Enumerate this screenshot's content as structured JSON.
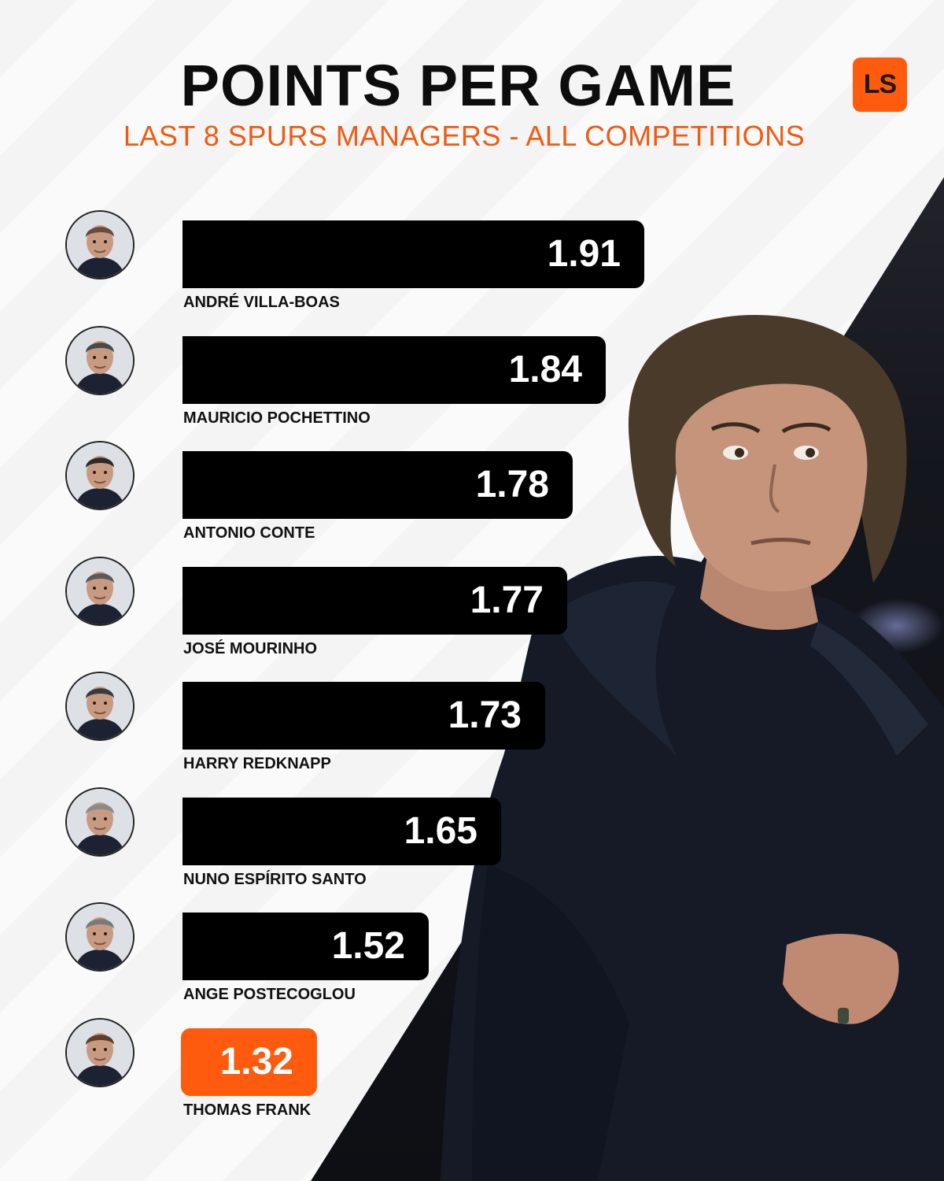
{
  "header": {
    "title": "POINTS PER GAME",
    "subtitle": "LAST 8 SPURS MANAGERS - ALL COMPETITIONS",
    "logo_text": "LS"
  },
  "colors": {
    "accent": "#fe5b0f",
    "bar": "#000000",
    "subtitle": "#f05a12"
  },
  "chart_data": {
    "type": "bar",
    "orientation": "horizontal",
    "title": "POINTS PER GAME",
    "subtitle": "LAST 8 SPURS MANAGERS - ALL COMPETITIONS",
    "categories": [
      "ANDRÉ VILLA-BOAS",
      "MAURICIO POCHETTINO",
      "ANTONIO CONTE",
      "JOSÉ MOURINHO",
      "HARRY REDKNAPP",
      "NUNO ESPÍRITO SANTO",
      "ANGE POSTECOGLOU",
      "THOMAS FRANK"
    ],
    "values": [
      1.91,
      1.84,
      1.78,
      1.77,
      1.73,
      1.65,
      1.52,
      1.32
    ],
    "value_labels": [
      "1.91",
      "1.84",
      "1.78",
      "1.77",
      "1.73",
      "1.65",
      "1.52",
      "1.32"
    ],
    "highlight_index": 7,
    "grid": false,
    "legend": "none"
  }
}
